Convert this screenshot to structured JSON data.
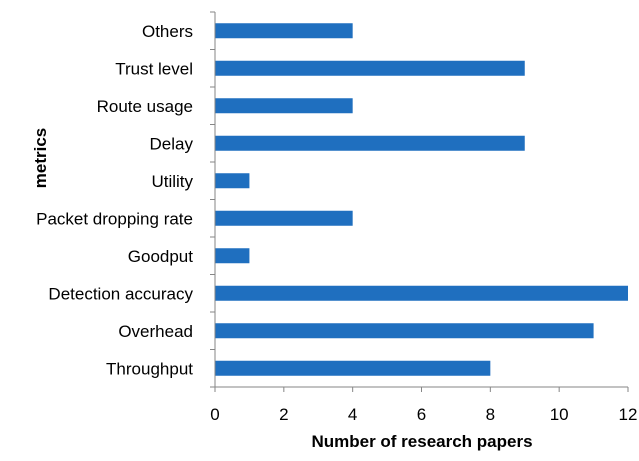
{
  "chart_data": {
    "type": "bar",
    "orientation": "horizontal",
    "title": "",
    "xlabel": "Number of research papers",
    "ylabel": "metrics",
    "categories": [
      "Others",
      "Trust level",
      "Route usage",
      "Delay",
      "Utility",
      "Packet dropping rate",
      "Goodput",
      "Detection accuracy",
      "Overhead",
      "Throughput"
    ],
    "values": [
      4,
      9,
      4,
      9,
      1,
      4,
      1,
      12,
      11,
      8
    ],
    "xlim": [
      0,
      12
    ],
    "xticks": [
      "0",
      "2",
      "4",
      "6",
      "8",
      "10",
      "12"
    ],
    "bar_color": "#1f6fbf",
    "grid": false,
    "legend": "none"
  }
}
